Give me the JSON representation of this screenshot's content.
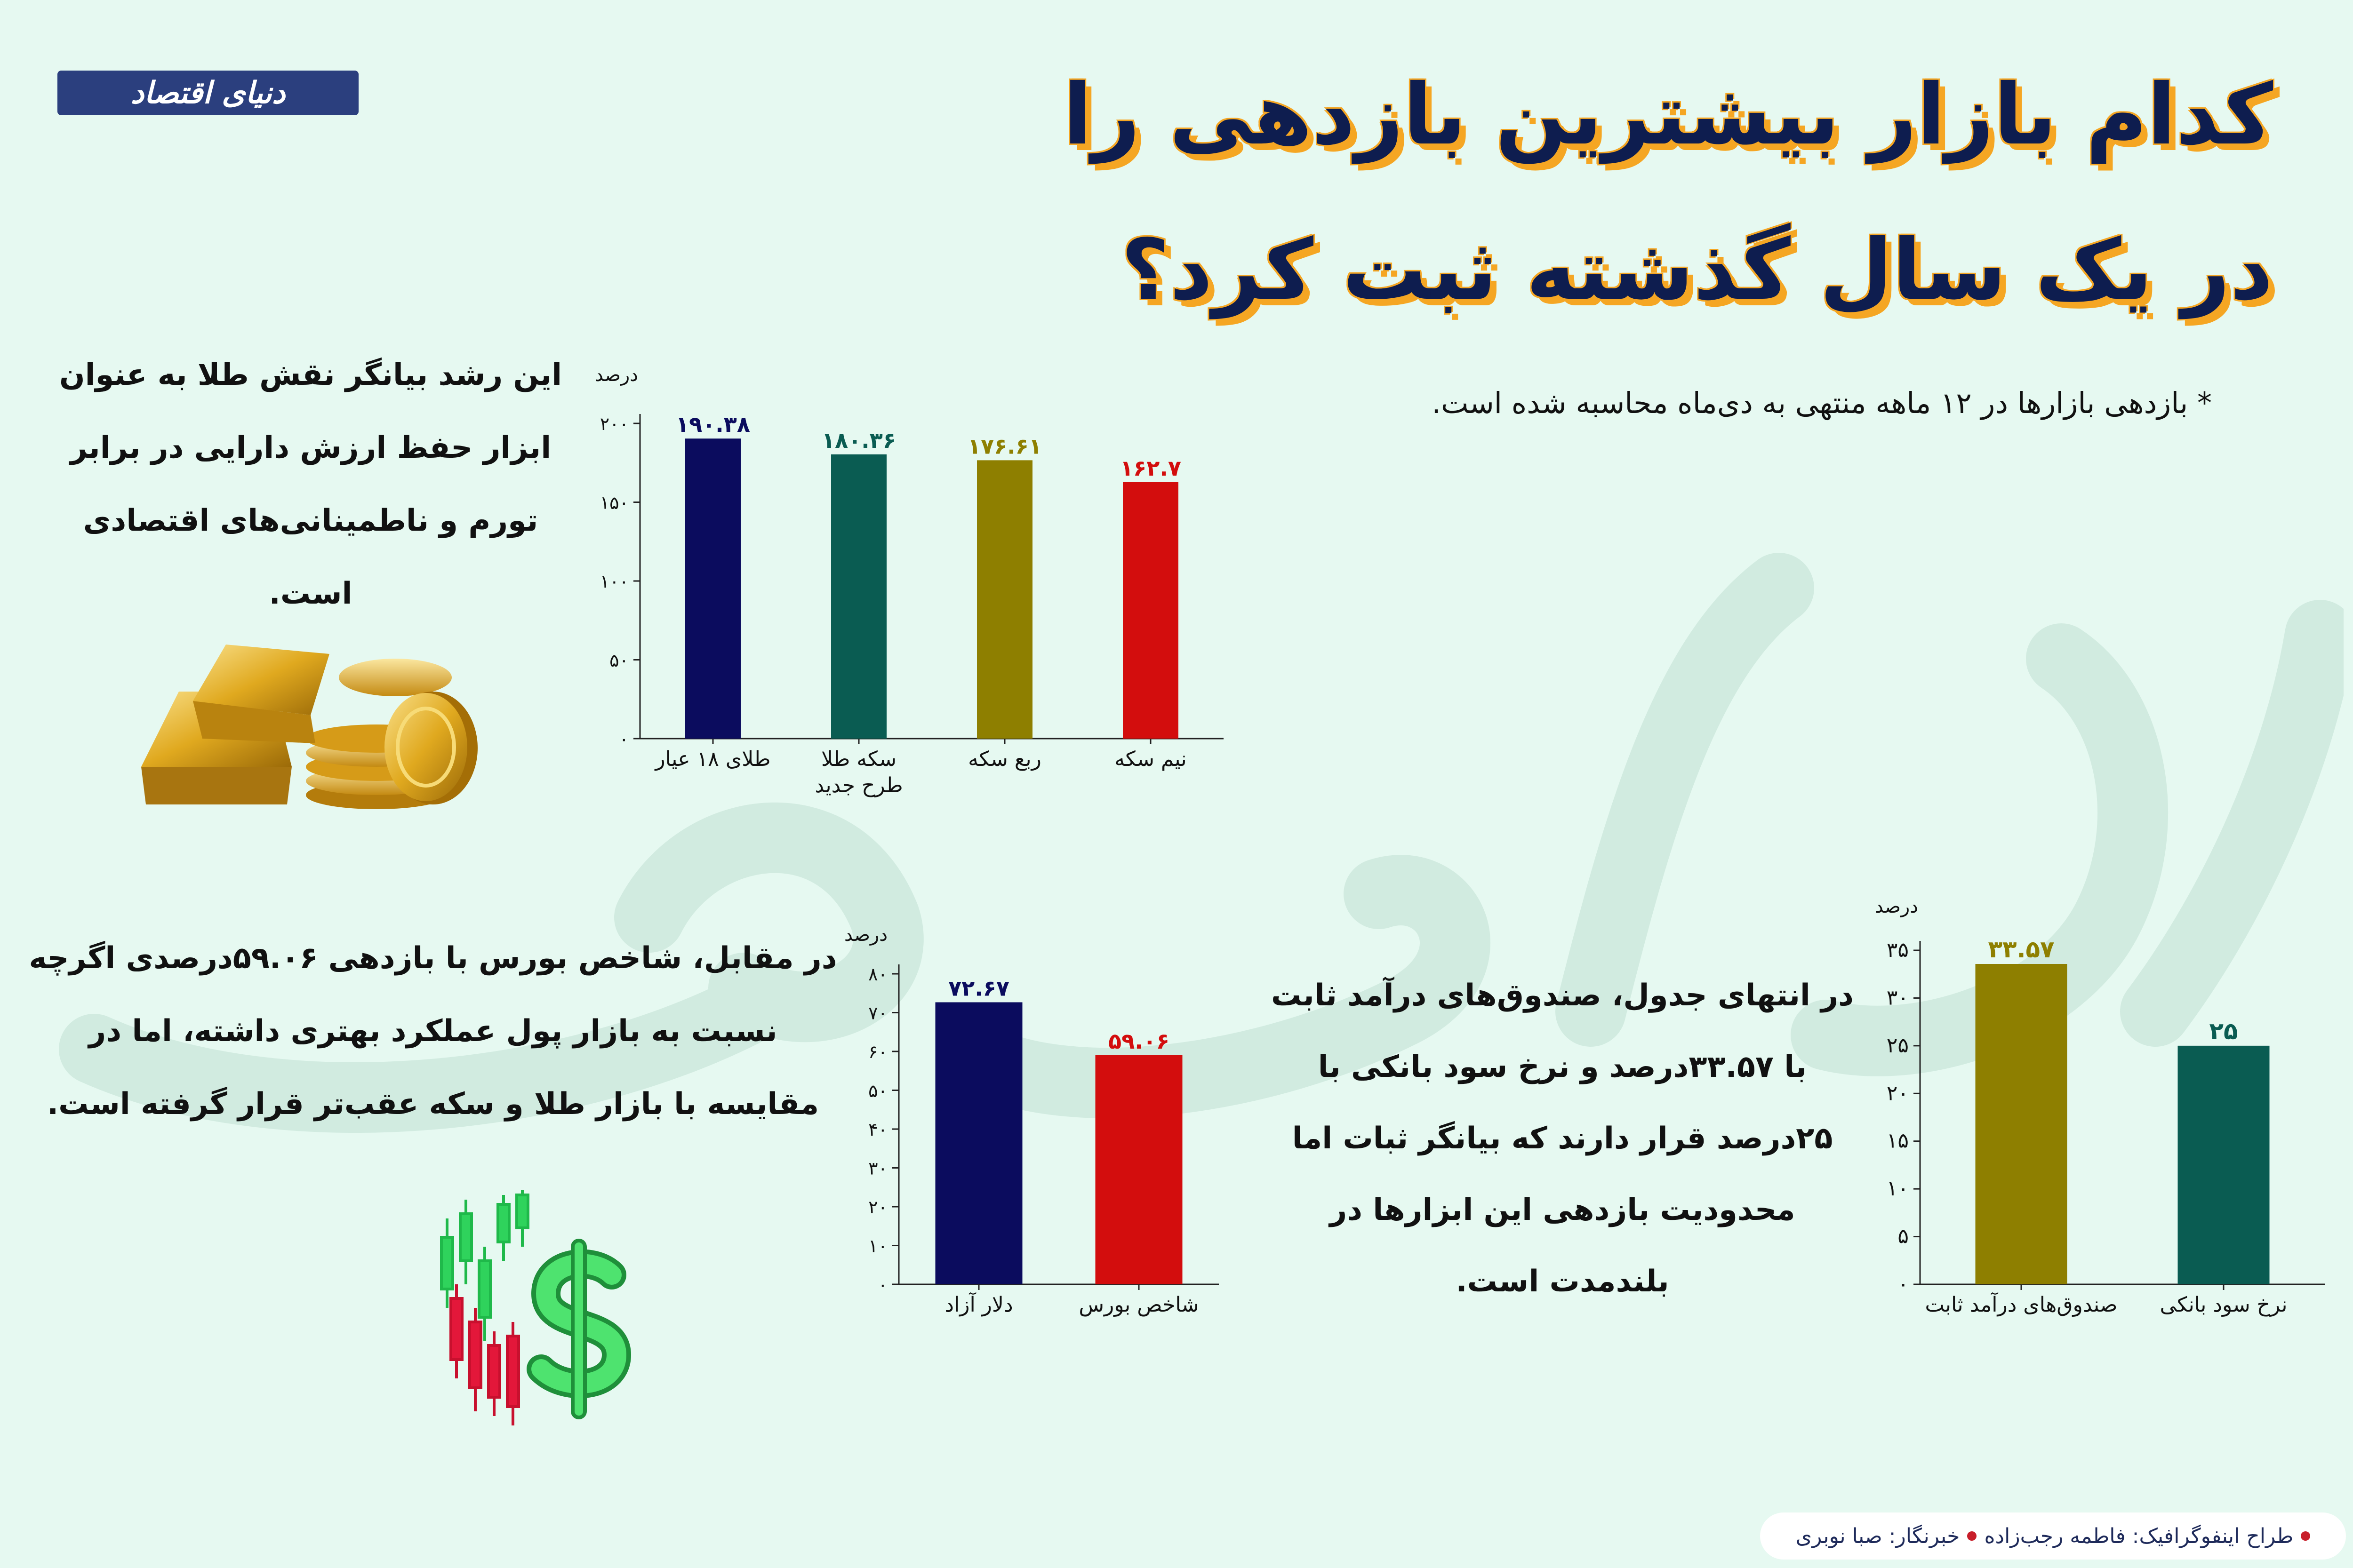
{
  "brand": {
    "logo_text": "دنیای اقتصاد"
  },
  "headline": {
    "line1": "کدام بازار بیشترین بازدهی را",
    "line2": "در یک سال گذشته ثبت کرد؟"
  },
  "footnote": "* بازدهی بازارها در ۱۲ ماهه منتهی به دی‌ماه محاسبه شده است.",
  "paragraphs": {
    "gold": "این رشد بیانگر نقش طلا به عنوان ابزار حفظ ارزش دارایی در برابر تورم و ناطمینانی‌های اقتصادی است.",
    "stock": "در مقابل، شاخص بورس با بازدهی ۵۹.۰۶درصدی اگرچه نسبت به بازار پول عملکرد بهتری داشته، اما در مقایسه با بازار طلا و سکه عقب‌تر قرار گرفته است.",
    "fund": "در انتهای جدول، صندوق‌های درآمد ثابت با ۳۳.۵۷درصد و نرخ سود بانکی با ۲۵درصد قرار دارند که بیانگر ثبات اما محدودیت بازدهی این ابزارها در بلندمدت است."
  },
  "credits": {
    "designer": "طراح اینفوگرافیک: فاطمه رجب‌زاده",
    "reporter": "خبرنگار: صبا نوبری"
  },
  "chart_data": [
    {
      "type": "bar",
      "ylabel": "درصد",
      "ylim": [
        0,
        200
      ],
      "yticks": [
        0,
        50,
        100,
        150,
        200
      ],
      "ytick_labels": [
        "۰",
        "۵۰",
        "۱۰۰",
        "۱۵۰",
        "۲۰۰"
      ],
      "categories": [
        "طلای ۱۸ عیار",
        "سکه طلا طرح جدید",
        "ربع سکه",
        "نیم سکه"
      ],
      "category_lines": [
        [
          "طلای ۱۸ عیار"
        ],
        [
          "سکه طلا",
          "طرح جدید"
        ],
        [
          "ربع سکه"
        ],
        [
          "نیم سکه"
        ]
      ],
      "values": [
        190.38,
        180.36,
        176.61,
        162.7
      ],
      "value_labels": [
        "۱۹۰.۳۸",
        "۱۸۰.۳۶",
        "۱۷۶.۶۱",
        "۱۶۲.۷"
      ],
      "colors": [
        "#0b0c5e",
        "#0a5c52",
        "#8e7f00",
        "#d30d0d"
      ]
    },
    {
      "type": "bar",
      "ylabel": "درصد",
      "ylim": [
        0,
        80
      ],
      "yticks": [
        0,
        10,
        20,
        30,
        40,
        50,
        60,
        70,
        80
      ],
      "ytick_labels": [
        "۰",
        "۱۰",
        "۲۰",
        "۳۰",
        "۴۰",
        "۵۰",
        "۶۰",
        "۷۰",
        "۸۰"
      ],
      "categories": [
        "دلار آزاد",
        "شاخص بورس"
      ],
      "category_lines": [
        [
          "دلار آزاد"
        ],
        [
          "شاخص بورس"
        ]
      ],
      "values": [
        72.67,
        59.06
      ],
      "value_labels": [
        "۷۲.۶۷",
        "۵۹.۰۶"
      ],
      "colors": [
        "#0b0c5e",
        "#d30d0d"
      ]
    },
    {
      "type": "bar",
      "ylabel": "درصد",
      "ylim": [
        0,
        35
      ],
      "yticks": [
        0,
        5,
        10,
        15,
        20,
        25,
        30,
        35
      ],
      "ytick_labels": [
        "۰",
        "۵",
        "۱۰",
        "۱۵",
        "۲۰",
        "۲۵",
        "۳۰",
        "۳۵"
      ],
      "categories": [
        "صندوق‌های درآمد ثابت",
        "نرخ سود بانکی"
      ],
      "category_lines": [
        [
          "صندوق‌های درآمد ثابت"
        ],
        [
          "نرخ سود بانکی"
        ]
      ],
      "values": [
        33.57,
        25
      ],
      "value_labels": [
        "۳۳.۵۷",
        "۲۵"
      ],
      "colors": [
        "#8e7f00",
        "#0a5c52"
      ]
    }
  ]
}
